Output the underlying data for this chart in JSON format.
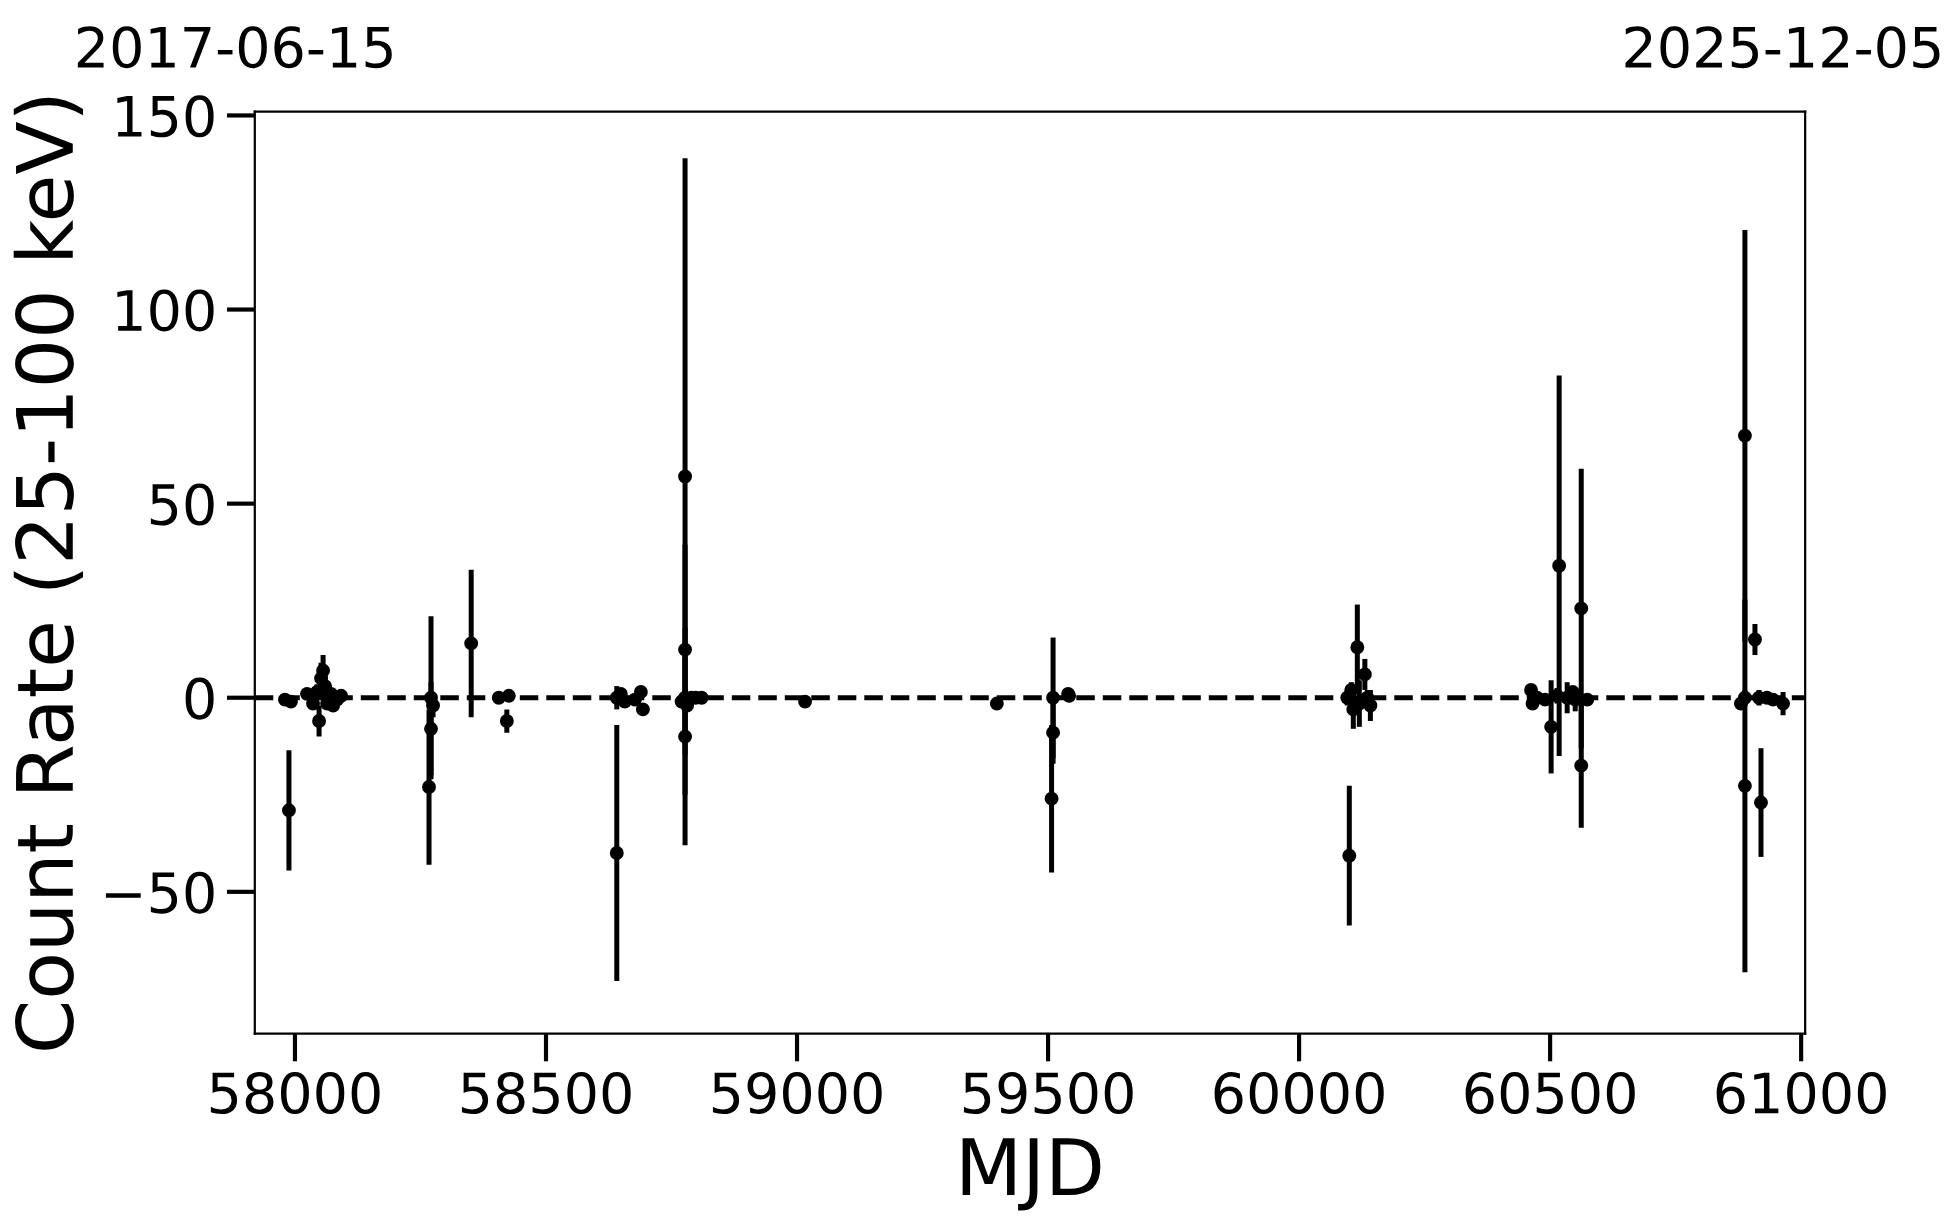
{
  "chart_data": {
    "type": "scatter",
    "xlabel": "MJD",
    "ylabel": "Count Rate (25-100 keV)",
    "marker": "circle",
    "grid": false,
    "legend": false,
    "xlim": [
      57920,
      61008
    ],
    "ylim": [
      -86.5,
      151
    ],
    "xticks": [
      58000,
      58500,
      59000,
      59500,
      60000,
      60500,
      61000
    ],
    "yticks": [
      {
        "value": -50,
        "label": "−50"
      },
      0,
      50,
      100,
      150
    ],
    "annotations": [
      "2017-06-15",
      "2025-12-05"
    ],
    "ref_lines": [
      {
        "axis": "y",
        "value": 0,
        "label": null,
        "color": "#000000",
        "line_style": "dashed"
      }
    ],
    "series": [
      {
        "color": "#000000",
        "x": [
          57980,
          57992,
          57988,
          58024,
          58036,
          58044,
          58048,
          58052,
          58056,
          58060,
          58064,
          58072,
          58076,
          58084,
          58092,
          58271,
          58275,
          58271,
          58267,
          58351,
          58406,
          58422,
          58426,
          58641,
          58641,
          58649,
          58657,
          58677,
          58689,
          58693,
          58777,
          58777,
          58777,
          58777,
          58770,
          58781,
          58790,
          58798,
          58810,
          59016,
          59398,
          59510,
          59510,
          59507,
          59542,
          59540,
          60100,
          60116,
          60131,
          60096,
          60104,
          60108,
          60120,
          60136,
          60142,
          60462,
          60465,
          60474,
          60490,
          60502,
          60514,
          60518,
          60534,
          60550,
          60545,
          60562,
          60562,
          60574,
          60880,
          60888,
          60888,
          60888,
          60908,
          60920,
          60916,
          60932,
          60944,
          60964
        ],
        "values": [
          -0.5,
          -1,
          -29,
          1,
          -1.5,
          1.5,
          -6,
          5,
          7,
          3,
          -1.5,
          1,
          -2,
          -0.5,
          0.5,
          0,
          -2,
          -8,
          -23,
          14,
          0,
          -6,
          0.5,
          -40,
          0,
          1,
          -1,
          -0.5,
          1.5,
          -3,
          57,
          12.4,
          -10,
          0,
          -1,
          -2,
          0,
          0,
          0,
          -1,
          -1.5,
          0,
          -9,
          -26,
          0.5,
          1,
          -40.7,
          13,
          6,
          0,
          2,
          -3,
          -1.5,
          0,
          -2,
          2,
          -1.5,
          0,
          -0.5,
          -7.5,
          0.5,
          34,
          0,
          -0.5,
          1.5,
          23,
          -17.5,
          -0.5,
          -1.5,
          67.5,
          0,
          -22.7,
          15,
          -27,
          0,
          0,
          -0.5,
          -1.5
        ],
        "errors": [
          1,
          1,
          15.5,
          1,
          1,
          2,
          4,
          4,
          4,
          5,
          1.5,
          1,
          1.5,
          1,
          1,
          21,
          3,
          12,
          20,
          19,
          1,
          3,
          1,
          33,
          3,
          1,
          1,
          1,
          1,
          1,
          82,
          27,
          28,
          10,
          1,
          1,
          1,
          1,
          1,
          1,
          1,
          15.5,
          8,
          19,
          1,
          1,
          18,
          11,
          4,
          2,
          2,
          5,
          6,
          2,
          4,
          1,
          1,
          1,
          1,
          12,
          2,
          49,
          4,
          3,
          1,
          36,
          16,
          1,
          1,
          53,
          2,
          48,
          4,
          14,
          2,
          1,
          1,
          3
        ]
      }
    ]
  }
}
